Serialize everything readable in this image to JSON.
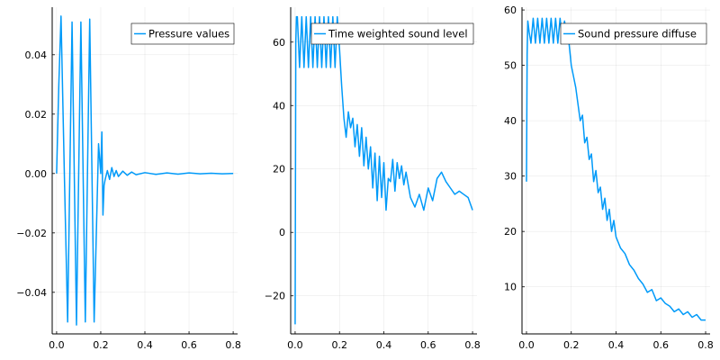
{
  "chart_data": [
    {
      "type": "line",
      "title": "",
      "xlabel": "",
      "ylabel": "",
      "grid": true,
      "legend_placement": "top-right",
      "series_color": "#009af9",
      "xlim": [
        -0.02,
        0.82
      ],
      "ylim": [
        -0.054,
        0.056
      ],
      "x_ticks": [
        "0.0",
        "0.2",
        "0.4",
        "0.6",
        "0.8"
      ],
      "y_ticks": [
        "0.04",
        "0.02",
        "0.00",
        "-0.02",
        "-0.04"
      ],
      "series": [
        {
          "name": "Pressure values",
          "x": [
            0.0,
            0.01,
            0.02,
            0.035,
            0.05,
            0.07,
            0.09,
            0.11,
            0.13,
            0.15,
            0.17,
            0.19,
            0.2,
            0.205,
            0.21,
            0.215,
            0.22,
            0.23,
            0.24,
            0.25,
            0.26,
            0.27,
            0.28,
            0.3,
            0.32,
            0.34,
            0.36,
            0.4,
            0.45,
            0.5,
            0.55,
            0.6,
            0.65,
            0.7,
            0.75,
            0.8
          ],
          "y": [
            0.0,
            0.03,
            0.053,
            0.0,
            -0.05,
            0.051,
            -0.051,
            0.051,
            -0.05,
            0.052,
            -0.05,
            0.01,
            0.0,
            0.014,
            -0.014,
            -0.004,
            -0.002,
            0.001,
            -0.002,
            0.002,
            -0.001,
            0.001,
            -0.001,
            0.0008,
            -0.0006,
            0.0005,
            -0.0004,
            0.0003,
            -0.0003,
            0.0002,
            -0.0002,
            0.0002,
            -0.0001,
            0.0001,
            -0.0001,
            0.0
          ]
        }
      ]
    },
    {
      "type": "line",
      "title": "",
      "xlabel": "",
      "ylabel": "",
      "grid": true,
      "legend_placement": "top-right",
      "series_color": "#009af9",
      "xlim": [
        -0.02,
        0.82
      ],
      "ylim": [
        -32,
        71
      ],
      "x_ticks": [
        "0.0",
        "0.2",
        "0.4",
        "0.6",
        "0.8"
      ],
      "y_ticks": [
        "60",
        "40",
        "20",
        "0",
        "-20"
      ],
      "series": [
        {
          "name": "Time weighted sound level",
          "x": [
            0.0,
            0.003,
            0.006,
            0.01,
            0.02,
            0.03,
            0.04,
            0.05,
            0.06,
            0.07,
            0.08,
            0.09,
            0.1,
            0.11,
            0.12,
            0.13,
            0.14,
            0.15,
            0.16,
            0.17,
            0.18,
            0.19,
            0.2,
            0.21,
            0.22,
            0.23,
            0.24,
            0.25,
            0.26,
            0.27,
            0.28,
            0.29,
            0.3,
            0.31,
            0.32,
            0.33,
            0.34,
            0.35,
            0.36,
            0.37,
            0.38,
            0.39,
            0.4,
            0.41,
            0.42,
            0.43,
            0.44,
            0.45,
            0.46,
            0.47,
            0.48,
            0.49,
            0.5,
            0.52,
            0.54,
            0.56,
            0.58,
            0.6,
            0.62,
            0.64,
            0.66,
            0.68,
            0.7,
            0.72,
            0.74,
            0.76,
            0.78,
            0.8
          ],
          "y": [
            -29,
            60,
            68,
            68,
            52,
            68,
            52,
            68,
            52,
            68,
            52,
            68,
            52,
            68,
            52,
            68,
            52,
            68,
            52,
            68,
            52,
            68,
            58,
            46,
            36,
            30,
            38,
            33,
            36,
            27,
            34,
            24,
            33,
            21,
            30,
            20,
            27,
            14,
            25,
            10,
            24,
            11,
            22,
            7,
            17,
            16,
            23,
            13,
            22,
            17,
            21,
            15,
            19,
            11,
            8,
            12,
            7,
            14,
            10,
            17,
            19,
            16,
            14,
            12,
            13,
            12,
            11,
            7
          ]
        }
      ]
    },
    {
      "type": "line",
      "title": "",
      "xlabel": "",
      "ylabel": "",
      "grid": true,
      "legend_placement": "top-right",
      "series_color": "#009af9",
      "xlim": [
        -0.02,
        0.82
      ],
      "ylim": [
        1.5,
        60.5
      ],
      "x_ticks": [
        "0.0",
        "0.2",
        "0.4",
        "0.6",
        "0.8"
      ],
      "y_ticks": [
        "60",
        "50",
        "40",
        "30",
        "20",
        "10"
      ],
      "series": [
        {
          "name": "Sound pressure diffuse",
          "x": [
            0.0,
            0.003,
            0.006,
            0.012,
            0.02,
            0.03,
            0.04,
            0.05,
            0.06,
            0.07,
            0.08,
            0.09,
            0.1,
            0.11,
            0.12,
            0.13,
            0.14,
            0.15,
            0.16,
            0.17,
            0.18,
            0.19,
            0.2,
            0.22,
            0.24,
            0.25,
            0.26,
            0.27,
            0.28,
            0.29,
            0.3,
            0.31,
            0.32,
            0.33,
            0.34,
            0.35,
            0.36,
            0.37,
            0.38,
            0.39,
            0.4,
            0.42,
            0.44,
            0.46,
            0.48,
            0.5,
            0.52,
            0.54,
            0.56,
            0.58,
            0.6,
            0.62,
            0.64,
            0.66,
            0.68,
            0.7,
            0.72,
            0.74,
            0.76,
            0.78,
            0.8
          ],
          "y": [
            29,
            52,
            58,
            56,
            54,
            58.5,
            54,
            58.5,
            54,
            58.5,
            54,
            58.5,
            54,
            58.5,
            54,
            58.5,
            54,
            58.5,
            55,
            58,
            55,
            54,
            50,
            46,
            40,
            41,
            36,
            37,
            33,
            34,
            29,
            31,
            27,
            28,
            24,
            26,
            22,
            24,
            20,
            22,
            19,
            17,
            16,
            14,
            13,
            11.5,
            10.5,
            9,
            9.5,
            7.5,
            8,
            7,
            6.5,
            5.5,
            6,
            5,
            5.5,
            4.5,
            5,
            4,
            4
          ]
        }
      ]
    }
  ]
}
